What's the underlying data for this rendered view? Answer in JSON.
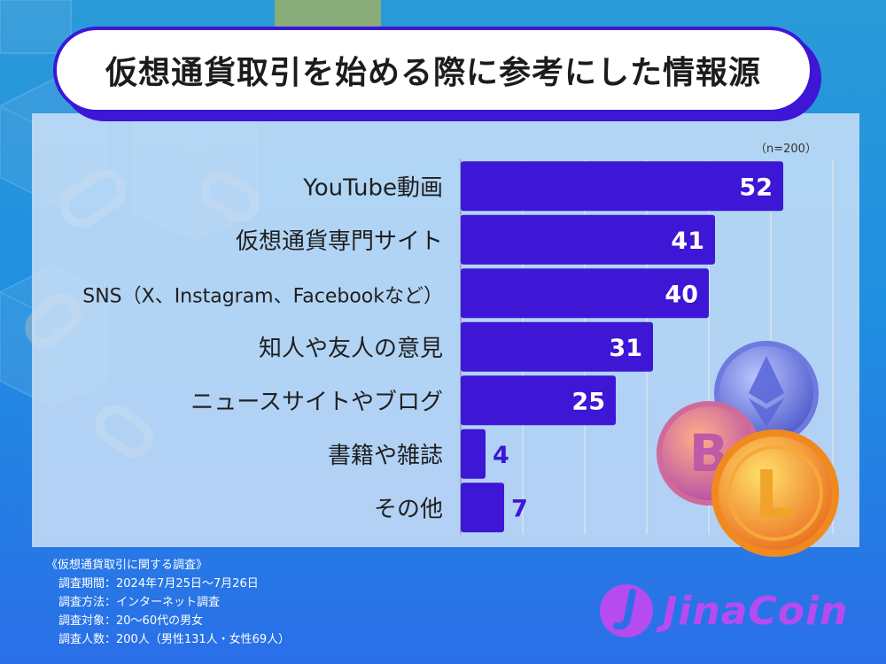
{
  "title": "仮想通貨取引を始める際に参考にした情報源",
  "sample_note": "（n=200）",
  "chart_data": {
    "type": "bar",
    "orientation": "horizontal",
    "title": "仮想通貨取引を始める際に参考にした情報源",
    "categories": [
      "YouTube動画",
      "仮想通貨専門サイト",
      "SNS（X、Instagram、Facebookなど）",
      "知人や友人の意見",
      "ニュースサイトやブログ",
      "書籍や雑誌",
      "その他"
    ],
    "values": [
      52,
      41,
      40,
      31,
      25,
      4,
      7
    ],
    "xlim": [
      0,
      60
    ],
    "grid": true,
    "bar_color": "#3d16d6"
  },
  "survey": {
    "title": "《仮想通貨取引に関する調査》",
    "lines": [
      "調査期間：2024年7月25日〜7月26日",
      "調査方法：インターネット調査",
      "調査対象：20〜60代の男女",
      "調査人数：200人（男性131人・女性69人）"
    ]
  },
  "logo": {
    "text": "JinaCoin",
    "color": "#b64cf0"
  }
}
